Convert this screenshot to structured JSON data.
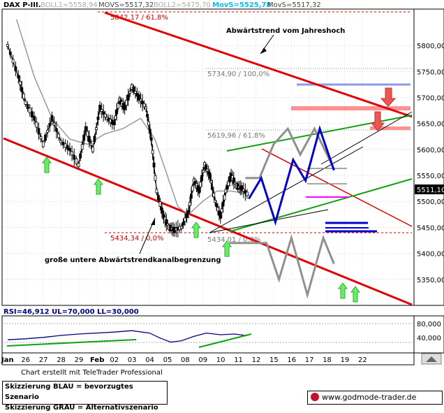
{
  "header": {
    "symbol": "DAX P-III.",
    "boll1": "BOLL1=5558,94",
    "movs1": "MOVS=5517,32",
    "boll2": "BOLL2=5475,70",
    "movs2": "MovS=5525,78",
    "movs3": "MovS=5517,32"
  },
  "annotations": {
    "fib_top": "5842,17 / 61,8%",
    "fib_100": "5734,90 / 100,0%",
    "fib_618": "5619,96 / 61,8%",
    "fib_bottom_left": "5434,34 / 0,0%",
    "fib_bottom_mid": "5434,01 / 0,0%",
    "trend_top": "Abwärtstrend vom Jahreshoch",
    "trend_bottom": "große untere Abwärtstrendkanalbegrenzung"
  },
  "price_badge": "5511,10",
  "rsi": {
    "header": "RSI=46,912  UL=70,000  LL=30,000",
    "ticks": [
      "80,000",
      "40,000"
    ]
  },
  "footer": {
    "note": "Chart erstellt mit TeleTrader Professional",
    "legend_blue": "Skizzierung BLAU = bevorzugtes Szenario",
    "legend_gray": "Skizzierung GRAU = Alternativszenario",
    "site": "www.godmode-trader.de"
  },
  "colors": {
    "trend": "#e00000",
    "green": "#10a010",
    "blue": "#0000cc",
    "gray": "#909090",
    "light_blue": "#8899ee",
    "pink": "#ff9090",
    "magenta": "#ff00ff",
    "arrow_green": "#66ee66",
    "arrow_red": "#ee5555",
    "navy": "#000080"
  },
  "chart_data": {
    "type": "candlestick",
    "title": "DAX P-III.",
    "xlabel": "",
    "ylabel": "",
    "ylim": [
      5300,
      5870
    ],
    "yticks": [
      5800,
      5750,
      5700,
      5650,
      5600,
      5550,
      5500,
      5450,
      5400,
      5350
    ],
    "ytick_labels": [
      "5800,00",
      "5750,00",
      "5700,00",
      "5650,00",
      "5600,00",
      "5550,00",
      "5500,00",
      "5450,00",
      "5400,00",
      "5350,00"
    ],
    "x_labels": [
      "Jan",
      "26",
      "27",
      "28",
      "29",
      "Feb",
      "02",
      "03",
      "04",
      "05",
      "08",
      "09",
      "10",
      "11",
      "12",
      "15",
      "16",
      "17",
      "18",
      "19",
      "22"
    ],
    "close_path": [
      {
        "x": 0,
        "y": 5800
      },
      {
        "x": 0.6,
        "y": 5740
      },
      {
        "x": 1,
        "y": 5690
      },
      {
        "x": 1.5,
        "y": 5660
      },
      {
        "x": 2,
        "y": 5610
      },
      {
        "x": 2.5,
        "y": 5660
      },
      {
        "x": 3,
        "y": 5615
      },
      {
        "x": 3.5,
        "y": 5600
      },
      {
        "x": 4,
        "y": 5570
      },
      {
        "x": 4.4,
        "y": 5640
      },
      {
        "x": 4.8,
        "y": 5600
      },
      {
        "x": 5.2,
        "y": 5680
      },
      {
        "x": 5.6,
        "y": 5660
      },
      {
        "x": 6,
        "y": 5650
      },
      {
        "x": 6.3,
        "y": 5695
      },
      {
        "x": 6.6,
        "y": 5680
      },
      {
        "x": 7,
        "y": 5720
      },
      {
        "x": 7.4,
        "y": 5700
      },
      {
        "x": 7.8,
        "y": 5680
      },
      {
        "x": 8.1,
        "y": 5620
      },
      {
        "x": 8.4,
        "y": 5520
      },
      {
        "x": 8.8,
        "y": 5470
      },
      {
        "x": 9.1,
        "y": 5450
      },
      {
        "x": 9.4,
        "y": 5445
      },
      {
        "x": 9.8,
        "y": 5450
      },
      {
        "x": 10.2,
        "y": 5480
      },
      {
        "x": 10.5,
        "y": 5540
      },
      {
        "x": 10.8,
        "y": 5520
      },
      {
        "x": 11.1,
        "y": 5570
      },
      {
        "x": 11.4,
        "y": 5550
      },
      {
        "x": 11.7,
        "y": 5500
      },
      {
        "x": 12.0,
        "y": 5470
      },
      {
        "x": 12.3,
        "y": 5520
      },
      {
        "x": 12.6,
        "y": 5550
      },
      {
        "x": 12.9,
        "y": 5530
      },
      {
        "x": 13.2,
        "y": 5525
      },
      {
        "x": 13.6,
        "y": 5511
      }
    ],
    "movs1_path": [
      {
        "x": 0.5,
        "y": 5850
      },
      {
        "x": 1.5,
        "y": 5740
      },
      {
        "x": 2.5,
        "y": 5660
      },
      {
        "x": 3.5,
        "y": 5620
      },
      {
        "x": 4.5,
        "y": 5610
      },
      {
        "x": 5.5,
        "y": 5630
      },
      {
        "x": 6.5,
        "y": 5640
      },
      {
        "x": 7.5,
        "y": 5660
      },
      {
        "x": 8.3,
        "y": 5620
      },
      {
        "x": 9,
        "y": 5550
      },
      {
        "x": 9.6,
        "y": 5490
      },
      {
        "x": 10.2,
        "y": 5475
      },
      {
        "x": 11,
        "y": 5500
      },
      {
        "x": 11.8,
        "y": 5520
      },
      {
        "x": 12.6,
        "y": 5520
      },
      {
        "x": 13.5,
        "y": 5515
      }
    ],
    "rsi_ylim": [
      0,
      100
    ],
    "rsi_path": [
      {
        "x": 0,
        "y": 35
      },
      {
        "x": 1,
        "y": 38
      },
      {
        "x": 2,
        "y": 42
      },
      {
        "x": 3,
        "y": 48
      },
      {
        "x": 4,
        "y": 52
      },
      {
        "x": 5,
        "y": 55
      },
      {
        "x": 6,
        "y": 58
      },
      {
        "x": 7,
        "y": 62
      },
      {
        "x": 8,
        "y": 55
      },
      {
        "x": 8.6,
        "y": 40
      },
      {
        "x": 9.2,
        "y": 28
      },
      {
        "x": 9.8,
        "y": 32
      },
      {
        "x": 10.5,
        "y": 45
      },
      {
        "x": 11.2,
        "y": 55
      },
      {
        "x": 12,
        "y": 50
      },
      {
        "x": 12.8,
        "y": 52
      },
      {
        "x": 13.5,
        "y": 47
      }
    ],
    "scenario_blue": [
      {
        "x": 13.6,
        "y": 5505
      },
      {
        "x": 14.3,
        "y": 5545
      },
      {
        "x": 15.1,
        "y": 5460
      },
      {
        "x": 16.1,
        "y": 5580
      },
      {
        "x": 16.8,
        "y": 5540
      },
      {
        "x": 17.6,
        "y": 5640
      },
      {
        "x": 18.4,
        "y": 5560
      }
    ],
    "scenario_gray": [
      {
        "x": 13.4,
        "y": 5545
      },
      {
        "x": 14.2,
        "y": 5545
      },
      {
        "x": 15,
        "y": 5610
      },
      {
        "x": 15.8,
        "y": 5640
      },
      {
        "x": 16.5,
        "y": 5590
      },
      {
        "x": 17.3,
        "y": 5640
      },
      {
        "x": 18.3,
        "y": 5570
      }
    ],
    "scenario_gray_low": [
      {
        "x": 12.5,
        "y": 5420
      },
      {
        "x": 14.6,
        "y": 5420
      },
      {
        "x": 15.3,
        "y": 5350
      },
      {
        "x": 16.0,
        "y": 5430
      },
      {
        "x": 16.9,
        "y": 5320
      },
      {
        "x": 17.8,
        "y": 5430
      },
      {
        "x": 18.4,
        "y": 5380
      }
    ]
  }
}
